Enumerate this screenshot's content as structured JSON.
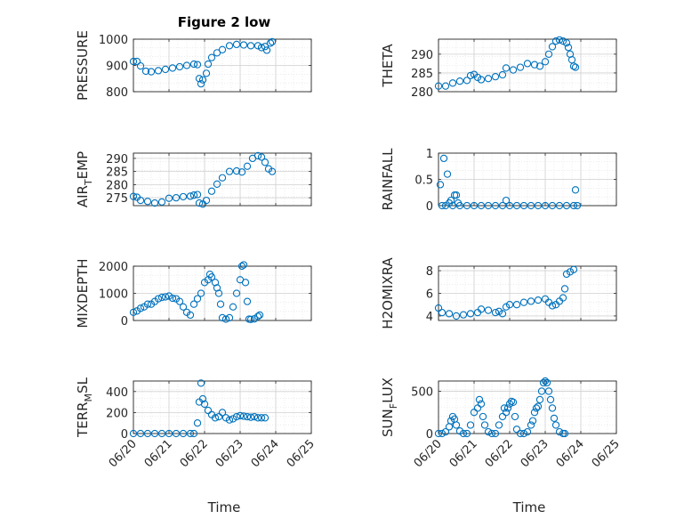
{
  "figure": {
    "title": "Figure 2 low",
    "xlabel": "Time",
    "x_ticks": [
      "06/20",
      "06/21",
      "06/22",
      "06/23",
      "06/24",
      "06/25"
    ]
  },
  "colors": {
    "marker": "#0072BD",
    "grid": "#dfdfdf",
    "axis": "#262626"
  },
  "chart_data": [
    {
      "type": "scatter",
      "ylabel": "PRESSURE",
      "ylabel_sub": "",
      "ylabel_tail": "",
      "ylim": [
        800,
        1000
      ],
      "yticks": [
        "800",
        "900",
        "1000"
      ],
      "xlim": [
        0,
        5
      ],
      "points": [
        [
          0,
          915
        ],
        [
          0.1,
          915
        ],
        [
          0.2,
          898
        ],
        [
          0.35,
          878
        ],
        [
          0.5,
          876
        ],
        [
          0.7,
          880
        ],
        [
          0.9,
          885
        ],
        [
          1.1,
          890
        ],
        [
          1.3,
          895
        ],
        [
          1.5,
          900
        ],
        [
          1.7,
          905
        ],
        [
          1.8,
          903
        ],
        [
          1.85,
          850
        ],
        [
          1.9,
          830
        ],
        [
          1.95,
          845
        ],
        [
          2.05,
          870
        ],
        [
          2.1,
          905
        ],
        [
          2.2,
          930
        ],
        [
          2.35,
          948
        ],
        [
          2.5,
          960
        ],
        [
          2.7,
          975
        ],
        [
          2.9,
          980
        ],
        [
          3.1,
          978
        ],
        [
          3.3,
          975
        ],
        [
          3.5,
          975
        ],
        [
          3.6,
          968
        ],
        [
          3.7,
          972
        ],
        [
          3.75,
          958
        ],
        [
          3.85,
          985
        ],
        [
          3.9,
          990
        ]
      ]
    },
    {
      "type": "scatter",
      "ylabel": "THETA",
      "ylabel_sub": "",
      "ylabel_tail": "",
      "ylim": [
        280,
        294
      ],
      "yticks": [
        "280",
        "285",
        "290"
      ],
      "xlim": [
        0,
        5
      ],
      "points": [
        [
          0,
          281.5
        ],
        [
          0.2,
          281.5
        ],
        [
          0.4,
          282.3
        ],
        [
          0.6,
          282.8
        ],
        [
          0.8,
          283
        ],
        [
          0.9,
          284.3
        ],
        [
          1.0,
          284.6
        ],
        [
          1.1,
          283.8
        ],
        [
          1.2,
          283.2
        ],
        [
          1.4,
          283.5
        ],
        [
          1.6,
          284
        ],
        [
          1.8,
          284.5
        ],
        [
          1.9,
          286.3
        ],
        [
          2.1,
          285.8
        ],
        [
          2.3,
          286.5
        ],
        [
          2.5,
          287.5
        ],
        [
          2.7,
          287.2
        ],
        [
          2.85,
          286.8
        ],
        [
          3.0,
          288
        ],
        [
          3.1,
          290
        ],
        [
          3.2,
          292
        ],
        [
          3.3,
          293.5
        ],
        [
          3.4,
          293.8
        ],
        [
          3.5,
          293.5
        ],
        [
          3.6,
          293
        ],
        [
          3.65,
          291.8
        ],
        [
          3.7,
          290
        ],
        [
          3.75,
          288.5
        ],
        [
          3.8,
          286.8
        ],
        [
          3.85,
          286.5
        ]
      ]
    },
    {
      "type": "scatter",
      "ylabel": "AIR",
      "ylabel_sub": "T",
      "ylabel_tail": "EMP",
      "ylim": [
        272,
        292
      ],
      "yticks": [
        "275",
        "280",
        "285",
        "290"
      ],
      "xlim": [
        0,
        5
      ],
      "points": [
        [
          0,
          275.5
        ],
        [
          0.1,
          275.2
        ],
        [
          0.2,
          274
        ],
        [
          0.4,
          273.6
        ],
        [
          0.6,
          273
        ],
        [
          0.8,
          273.4
        ],
        [
          1.0,
          274.8
        ],
        [
          1.2,
          275
        ],
        [
          1.4,
          275.4
        ],
        [
          1.6,
          275.6
        ],
        [
          1.7,
          276
        ],
        [
          1.8,
          276.2
        ],
        [
          1.85,
          273
        ],
        [
          1.95,
          272.6
        ],
        [
          2.05,
          274
        ],
        [
          2.2,
          277.5
        ],
        [
          2.35,
          280.2
        ],
        [
          2.5,
          282.6
        ],
        [
          2.7,
          285
        ],
        [
          2.9,
          285.2
        ],
        [
          3.05,
          284.8
        ],
        [
          3.2,
          287
        ],
        [
          3.35,
          290
        ],
        [
          3.5,
          291
        ],
        [
          3.6,
          290.5
        ],
        [
          3.7,
          288.5
        ],
        [
          3.8,
          286
        ],
        [
          3.9,
          285
        ]
      ]
    },
    {
      "type": "scatter",
      "ylabel": "RAINFALL",
      "ylabel_sub": "",
      "ylabel_tail": "",
      "ylim": [
        0,
        1
      ],
      "yticks": [
        "0",
        "0.5",
        "1"
      ],
      "xlim": [
        0,
        5
      ],
      "points": [
        [
          0.05,
          0.4
        ],
        [
          0.1,
          0
        ],
        [
          0.15,
          0.9
        ],
        [
          0.2,
          0
        ],
        [
          0.25,
          0.6
        ],
        [
          0.3,
          0.05
        ],
        [
          0.35,
          0.1
        ],
        [
          0.4,
          0
        ],
        [
          0.45,
          0.2
        ],
        [
          0.5,
          0.2
        ],
        [
          0.55,
          0.05
        ],
        [
          0.6,
          0
        ],
        [
          0.8,
          0
        ],
        [
          1.0,
          0
        ],
        [
          1.2,
          0
        ],
        [
          1.4,
          0
        ],
        [
          1.6,
          0
        ],
        [
          1.8,
          0
        ],
        [
          1.9,
          0.1
        ],
        [
          2.0,
          0
        ],
        [
          2.2,
          0
        ],
        [
          2.4,
          0
        ],
        [
          2.6,
          0
        ],
        [
          2.8,
          0
        ],
        [
          3.0,
          0
        ],
        [
          3.2,
          0
        ],
        [
          3.4,
          0
        ],
        [
          3.6,
          0
        ],
        [
          3.8,
          0
        ],
        [
          3.85,
          0.3
        ],
        [
          3.9,
          0
        ]
      ]
    },
    {
      "type": "scatter",
      "ylabel": "MIXDEPTH",
      "ylabel_sub": "",
      "ylabel_tail": "",
      "ylim": [
        0,
        2000
      ],
      "yticks": [
        "0",
        "1000",
        "2000"
      ],
      "xlim": [
        0,
        5
      ],
      "points": [
        [
          0,
          300
        ],
        [
          0.1,
          350
        ],
        [
          0.2,
          450
        ],
        [
          0.3,
          500
        ],
        [
          0.4,
          600
        ],
        [
          0.5,
          600
        ],
        [
          0.6,
          700
        ],
        [
          0.7,
          800
        ],
        [
          0.8,
          850
        ],
        [
          0.9,
          870
        ],
        [
          1.0,
          900
        ],
        [
          1.1,
          820
        ],
        [
          1.2,
          800
        ],
        [
          1.3,
          700
        ],
        [
          1.4,
          500
        ],
        [
          1.5,
          300
        ],
        [
          1.6,
          200
        ],
        [
          1.7,
          600
        ],
        [
          1.8,
          800
        ],
        [
          1.9,
          1000
        ],
        [
          2.0,
          1400
        ],
        [
          2.1,
          1500
        ],
        [
          2.15,
          1700
        ],
        [
          2.2,
          1600
        ],
        [
          2.3,
          1400
        ],
        [
          2.35,
          1200
        ],
        [
          2.4,
          1000
        ],
        [
          2.45,
          600
        ],
        [
          2.5,
          100
        ],
        [
          2.6,
          50
        ],
        [
          2.7,
          100
        ],
        [
          2.8,
          500
        ],
        [
          2.9,
          1000
        ],
        [
          3.0,
          1500
        ],
        [
          3.05,
          2000
        ],
        [
          3.1,
          2050
        ],
        [
          3.15,
          1400
        ],
        [
          3.2,
          700
        ],
        [
          3.25,
          50
        ],
        [
          3.3,
          40
        ],
        [
          3.4,
          60
        ],
        [
          3.5,
          150
        ],
        [
          3.55,
          200
        ]
      ]
    },
    {
      "type": "scatter",
      "ylabel": "H2OMIXRA",
      "ylabel_sub": "",
      "ylabel_tail": "",
      "ylim": [
        3.6,
        8.4
      ],
      "yticks": [
        "4",
        "6",
        "8"
      ],
      "xlim": [
        0,
        5
      ],
      "points": [
        [
          0,
          4.7
        ],
        [
          0.1,
          4.3
        ],
        [
          0.3,
          4.2
        ],
        [
          0.5,
          4.0
        ],
        [
          0.7,
          4.1
        ],
        [
          0.9,
          4.2
        ],
        [
          1.1,
          4.3
        ],
        [
          1.2,
          4.6
        ],
        [
          1.4,
          4.5
        ],
        [
          1.6,
          4.3
        ],
        [
          1.7,
          4.4
        ],
        [
          1.8,
          4.2
        ],
        [
          1.9,
          4.8
        ],
        [
          2.0,
          5.0
        ],
        [
          2.2,
          5.0
        ],
        [
          2.4,
          5.2
        ],
        [
          2.6,
          5.3
        ],
        [
          2.8,
          5.4
        ],
        [
          3.0,
          5.5
        ],
        [
          3.1,
          5.2
        ],
        [
          3.2,
          4.9
        ],
        [
          3.3,
          5.0
        ],
        [
          3.4,
          5.3
        ],
        [
          3.5,
          5.6
        ],
        [
          3.55,
          6.4
        ],
        [
          3.6,
          7.7
        ],
        [
          3.7,
          7.9
        ],
        [
          3.8,
          8.1
        ]
      ]
    },
    {
      "type": "scatter",
      "ylabel": "TERR",
      "ylabel_sub": "M",
      "ylabel_tail": "SL",
      "ylim": [
        0,
        500
      ],
      "yticks": [
        "0",
        "200",
        "400"
      ],
      "xlim": [
        0,
        5
      ],
      "points": [
        [
          0,
          0
        ],
        [
          0.2,
          0
        ],
        [
          0.4,
          0
        ],
        [
          0.6,
          0
        ],
        [
          0.8,
          0
        ],
        [
          1.0,
          0
        ],
        [
          1.2,
          0
        ],
        [
          1.4,
          0
        ],
        [
          1.6,
          0
        ],
        [
          1.7,
          0
        ],
        [
          1.8,
          100
        ],
        [
          1.85,
          300
        ],
        [
          1.9,
          480
        ],
        [
          1.95,
          330
        ],
        [
          2.0,
          280
        ],
        [
          2.1,
          220
        ],
        [
          2.2,
          180
        ],
        [
          2.3,
          150
        ],
        [
          2.4,
          160
        ],
        [
          2.5,
          200
        ],
        [
          2.6,
          150
        ],
        [
          2.7,
          130
        ],
        [
          2.8,
          140
        ],
        [
          2.9,
          160
        ],
        [
          3.0,
          170
        ],
        [
          3.1,
          165
        ],
        [
          3.2,
          160
        ],
        [
          3.3,
          155
        ],
        [
          3.4,
          160
        ],
        [
          3.5,
          150
        ],
        [
          3.6,
          150
        ],
        [
          3.7,
          150
        ]
      ]
    },
    {
      "type": "scatter",
      "ylabel": "SUN",
      "ylabel_sub": "F",
      "ylabel_tail": "LUX",
      "ylim": [
        0,
        620
      ],
      "yticks": [
        "0",
        "500"
      ],
      "xlim": [
        0,
        5
      ],
      "points": [
        [
          0,
          0
        ],
        [
          0.1,
          0
        ],
        [
          0.2,
          20
        ],
        [
          0.3,
          80
        ],
        [
          0.35,
          150
        ],
        [
          0.4,
          200
        ],
        [
          0.45,
          170
        ],
        [
          0.5,
          100
        ],
        [
          0.6,
          30
        ],
        [
          0.7,
          0
        ],
        [
          0.8,
          0
        ],
        [
          0.9,
          100
        ],
        [
          1.0,
          250
        ],
        [
          1.1,
          300
        ],
        [
          1.15,
          400
        ],
        [
          1.2,
          350
        ],
        [
          1.25,
          200
        ],
        [
          1.3,
          100
        ],
        [
          1.4,
          20
        ],
        [
          1.5,
          0
        ],
        [
          1.6,
          0
        ],
        [
          1.7,
          100
        ],
        [
          1.8,
          200
        ],
        [
          1.85,
          300
        ],
        [
          1.9,
          250
        ],
        [
          1.95,
          300
        ],
        [
          2.0,
          350
        ],
        [
          2.05,
          380
        ],
        [
          2.1,
          370
        ],
        [
          2.15,
          200
        ],
        [
          2.2,
          50
        ],
        [
          2.3,
          0
        ],
        [
          2.4,
          0
        ],
        [
          2.5,
          20
        ],
        [
          2.6,
          100
        ],
        [
          2.65,
          150
        ],
        [
          2.7,
          250
        ],
        [
          2.75,
          300
        ],
        [
          2.8,
          320
        ],
        [
          2.85,
          400
        ],
        [
          2.9,
          500
        ],
        [
          2.95,
          600
        ],
        [
          3.0,
          620
        ],
        [
          3.05,
          600
        ],
        [
          3.1,
          500
        ],
        [
          3.15,
          400
        ],
        [
          3.2,
          300
        ],
        [
          3.25,
          180
        ],
        [
          3.3,
          100
        ],
        [
          3.4,
          20
        ],
        [
          3.5,
          0
        ],
        [
          3.55,
          0
        ]
      ]
    }
  ]
}
